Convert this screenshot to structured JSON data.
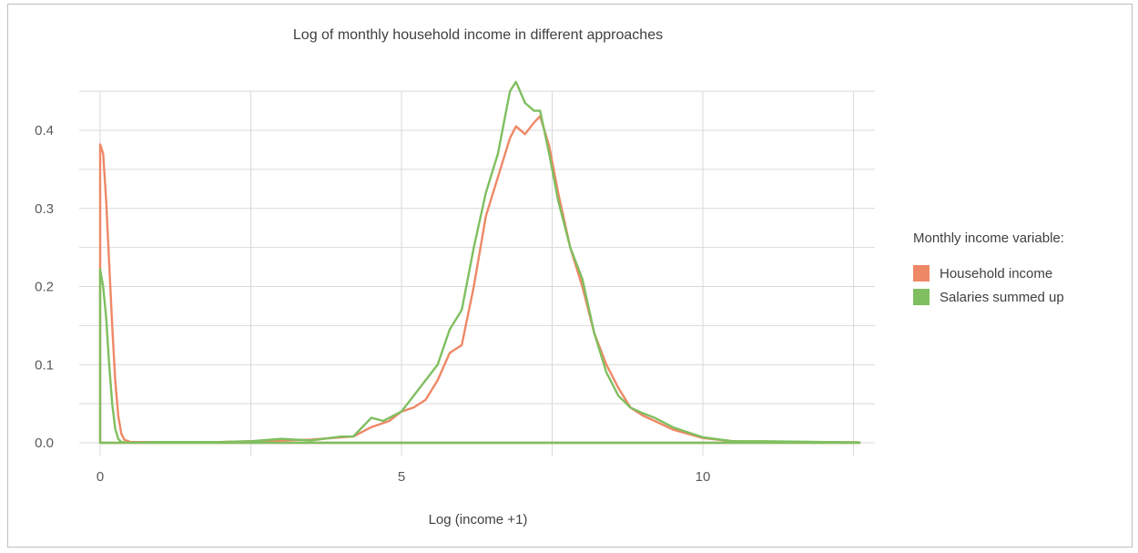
{
  "chart_data": {
    "type": "line",
    "title": "Log of monthly household income in different approaches",
    "xlabel": "Log (income +1)",
    "ylabel": "",
    "xlim": [
      -0.35,
      12.65
    ],
    "ylim": [
      0,
      0.45
    ],
    "x_ticks": [
      0,
      5,
      10
    ],
    "x_tick_labels": [
      "0",
      "5",
      "10"
    ],
    "y_ticks": [
      0,
      0.1,
      0.2,
      0.3,
      0.4
    ],
    "y_tick_labels": [
      "0.0",
      "0.1",
      "0.2",
      "0.3",
      "0.4"
    ],
    "grid": true,
    "legend": {
      "title": "Monthly income variable:",
      "position": "right"
    },
    "series": [
      {
        "name": "Household income",
        "color": "#ee8866",
        "points": [
          [
            0,
            0
          ],
          [
            0,
            0.382
          ],
          [
            0.05,
            0.37
          ],
          [
            0.1,
            0.31
          ],
          [
            0.15,
            0.23
          ],
          [
            0.2,
            0.15
          ],
          [
            0.25,
            0.08
          ],
          [
            0.3,
            0.035
          ],
          [
            0.35,
            0.012
          ],
          [
            0.4,
            0.004
          ],
          [
            0.5,
            0.001
          ],
          [
            1,
            0.001
          ],
          [
            2,
            0.001
          ],
          [
            2.5,
            0.002
          ],
          [
            3,
            0.003
          ],
          [
            3.5,
            0.004
          ],
          [
            4,
            0.007
          ],
          [
            4.2,
            0.008
          ],
          [
            4.5,
            0.02
          ],
          [
            4.8,
            0.028
          ],
          [
            5,
            0.04
          ],
          [
            5.2,
            0.045
          ],
          [
            5.4,
            0.055
          ],
          [
            5.6,
            0.08
          ],
          [
            5.8,
            0.115
          ],
          [
            6,
            0.125
          ],
          [
            6.2,
            0.2
          ],
          [
            6.4,
            0.29
          ],
          [
            6.6,
            0.34
          ],
          [
            6.8,
            0.39
          ],
          [
            6.9,
            0.405
          ],
          [
            7.05,
            0.395
          ],
          [
            7.2,
            0.41
          ],
          [
            7.3,
            0.418
          ],
          [
            7.45,
            0.38
          ],
          [
            7.6,
            0.32
          ],
          [
            7.8,
            0.25
          ],
          [
            8,
            0.2
          ],
          [
            8.2,
            0.14
          ],
          [
            8.4,
            0.1
          ],
          [
            8.6,
            0.07
          ],
          [
            8.8,
            0.045
          ],
          [
            9,
            0.035
          ],
          [
            9.2,
            0.028
          ],
          [
            9.5,
            0.017
          ],
          [
            10,
            0.006
          ],
          [
            10.5,
            0.002
          ],
          [
            11,
            0.001
          ],
          [
            12,
            0.001
          ],
          [
            12.6,
            0.0005
          ],
          [
            12.6,
            0
          ],
          [
            0,
            0
          ]
        ]
      },
      {
        "name": "Salaries summed up",
        "color": "#7fbf5f",
        "points": [
          [
            0,
            0
          ],
          [
            0,
            0.222
          ],
          [
            0.05,
            0.2
          ],
          [
            0.1,
            0.16
          ],
          [
            0.15,
            0.1
          ],
          [
            0.2,
            0.05
          ],
          [
            0.25,
            0.018
          ],
          [
            0.3,
            0.005
          ],
          [
            0.35,
            0.001
          ],
          [
            0.5,
            0
          ],
          [
            1,
            0.001
          ],
          [
            2,
            0.001
          ],
          [
            2.5,
            0.002
          ],
          [
            3,
            0.005
          ],
          [
            3.5,
            0.003
          ],
          [
            4,
            0.008
          ],
          [
            4.2,
            0.008
          ],
          [
            4.5,
            0.032
          ],
          [
            4.7,
            0.028
          ],
          [
            5,
            0.04
          ],
          [
            5.2,
            0.06
          ],
          [
            5.4,
            0.08
          ],
          [
            5.6,
            0.1
          ],
          [
            5.8,
            0.145
          ],
          [
            6,
            0.17
          ],
          [
            6.2,
            0.25
          ],
          [
            6.4,
            0.32
          ],
          [
            6.6,
            0.37
          ],
          [
            6.8,
            0.45
          ],
          [
            6.9,
            0.462
          ],
          [
            7.05,
            0.435
          ],
          [
            7.2,
            0.425
          ],
          [
            7.3,
            0.425
          ],
          [
            7.45,
            0.37
          ],
          [
            7.6,
            0.31
          ],
          [
            7.8,
            0.25
          ],
          [
            8,
            0.21
          ],
          [
            8.2,
            0.14
          ],
          [
            8.4,
            0.09
          ],
          [
            8.6,
            0.06
          ],
          [
            8.8,
            0.045
          ],
          [
            9,
            0.038
          ],
          [
            9.2,
            0.032
          ],
          [
            9.5,
            0.02
          ],
          [
            10,
            0.007
          ],
          [
            10.5,
            0.002
          ],
          [
            11,
            0.002
          ],
          [
            12,
            0.001
          ],
          [
            12.6,
            0.0005
          ],
          [
            12.6,
            0
          ],
          [
            0,
            0
          ]
        ]
      }
    ]
  }
}
